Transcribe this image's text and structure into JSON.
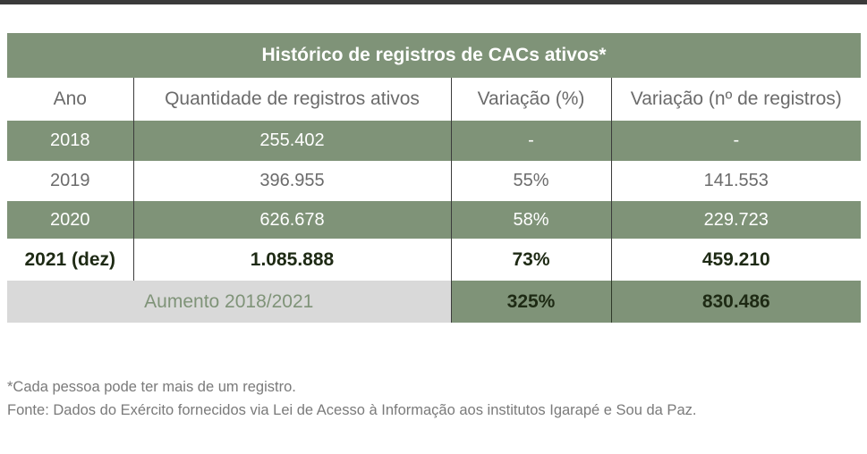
{
  "table": {
    "title": "Histórico de registros de CACs ativos*",
    "headers": [
      "Ano",
      "Quantidade de registros ativos",
      "Variação (%)",
      "Variação (nº de registros)"
    ],
    "rows": [
      [
        "2018",
        "255.402",
        "-",
        "-"
      ],
      [
        "2019",
        "396.955",
        "55%",
        "141.553"
      ],
      [
        "2020",
        "626.678",
        "58%",
        "229.723"
      ],
      [
        "2021 (dez)",
        "1.085.888",
        "73%",
        "459.210"
      ]
    ],
    "total": {
      "label": "Aumento 2018/2021",
      "percent": "325%",
      "count": "830.486"
    }
  },
  "notes": {
    "footnote": "*Cada pessoa pode ter mais de um registro.",
    "source": "Fonte: Dados do Exército fornecidos via Lei de Acesso à Informação aos institutos Igarapé e Sou da Paz."
  },
  "colors": {
    "green": "#7f9378",
    "gray": "#d9d9d9",
    "dark_text": "#1e2a14"
  }
}
